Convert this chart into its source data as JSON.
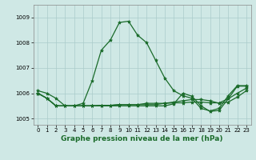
{
  "title": "Graphe pression niveau de la mer (hPa)",
  "background_color": "#cfe8e5",
  "grid_color": "#aaccca",
  "line_color": "#1a6b2a",
  "xlim": [
    -0.5,
    23.5
  ],
  "ylim": [
    1004.75,
    1009.5
  ],
  "yticks": [
    1005,
    1006,
    1007,
    1008,
    1009
  ],
  "xticks": [
    0,
    1,
    2,
    3,
    4,
    5,
    6,
    7,
    8,
    9,
    10,
    11,
    12,
    13,
    14,
    15,
    16,
    17,
    18,
    19,
    20,
    21,
    22,
    23
  ],
  "series": [
    [
      1006.1,
      1006.0,
      1005.8,
      1005.5,
      1005.5,
      1005.6,
      1006.5,
      1007.7,
      1008.1,
      1008.8,
      1008.85,
      1008.3,
      1008.0,
      1007.3,
      1006.6,
      1006.1,
      1005.9,
      1005.8,
      1005.4,
      1005.3,
      1005.4,
      1005.9,
      1006.3,
      1006.3
    ],
    [
      1006.0,
      1005.8,
      1005.5,
      1005.5,
      1005.5,
      1005.5,
      1005.5,
      1005.52,
      1005.52,
      1005.55,
      1005.55,
      1005.55,
      1005.55,
      1005.55,
      1005.6,
      1005.65,
      1005.7,
      1005.75,
      1005.75,
      1005.7,
      1005.6,
      1005.65,
      1005.85,
      1006.1
    ],
    [
      1006.0,
      1005.8,
      1005.5,
      1005.5,
      1005.5,
      1005.5,
      1005.5,
      1005.52,
      1005.52,
      1005.55,
      1005.55,
      1005.55,
      1005.6,
      1005.6,
      1005.6,
      1005.62,
      1005.62,
      1005.65,
      1005.65,
      1005.62,
      1005.62,
      1005.78,
      1006.0,
      1006.2
    ],
    [
      1006.0,
      1005.8,
      1005.5,
      1005.5,
      1005.5,
      1005.5,
      1005.5,
      1005.5,
      1005.5,
      1005.5,
      1005.5,
      1005.5,
      1005.5,
      1005.5,
      1005.5,
      1005.58,
      1006.0,
      1005.88,
      1005.5,
      1005.28,
      1005.32,
      1005.78,
      1006.28,
      1006.28
    ]
  ],
  "marker": "*",
  "markersize": 3,
  "linewidth": 0.9,
  "tick_fontsize": 5,
  "label_fontsize": 6,
  "title_fontsize": 6.5
}
